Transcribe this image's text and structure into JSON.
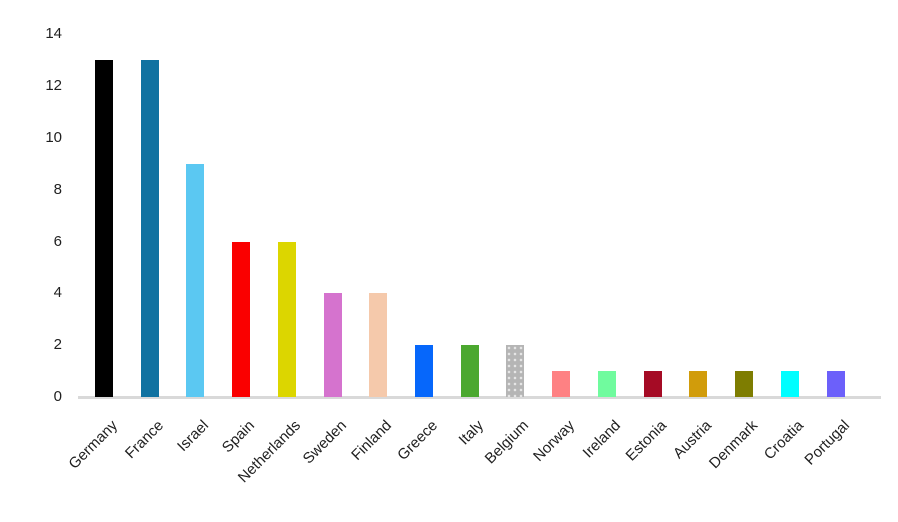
{
  "chart_data": {
    "type": "bar",
    "title": "",
    "xlabel": "",
    "ylabel": "",
    "categories": [
      "Germany",
      "France",
      "Israel",
      "Spain",
      "Netherlands",
      "Sweden",
      "Finland",
      "Greece",
      "Italy",
      "Belgium",
      "Norway",
      "Ireland",
      "Estonia",
      "Austria",
      "Denmark",
      "Croatia",
      "Portugal"
    ],
    "values": [
      13,
      13,
      9,
      6,
      6,
      4,
      4,
      2,
      2,
      2,
      1,
      1,
      1,
      1,
      1,
      1,
      1
    ],
    "bar_colors": [
      "#000000",
      "#1072a1",
      "#5bc8f2",
      "#fa0000",
      "#dcd600",
      "#d573ce",
      "#f5c9ab",
      "#0667fb",
      "#4ba82f",
      "#b5b5b5",
      "#fe8183",
      "#70fb9e",
      "#a50b25",
      "#d19c0b",
      "#7e7d01",
      "#00feff",
      "#6c60fa"
    ],
    "bar_patterns": [
      "solid",
      "solid",
      "solid",
      "solid",
      "solid",
      "solid",
      "solid",
      "solid",
      "solid",
      "dotted",
      "solid",
      "solid",
      "solid",
      "solid",
      "solid",
      "solid",
      "solid"
    ],
    "ylim": [
      0,
      14
    ],
    "yticks": [
      0,
      2,
      4,
      6,
      8,
      10,
      12,
      14
    ],
    "grid": false,
    "legend": false,
    "x_label_rotation_deg": 45,
    "axis_line_color": "#d9d9d9",
    "label_color": "#1f1f1f",
    "background": "#ffffff"
  }
}
